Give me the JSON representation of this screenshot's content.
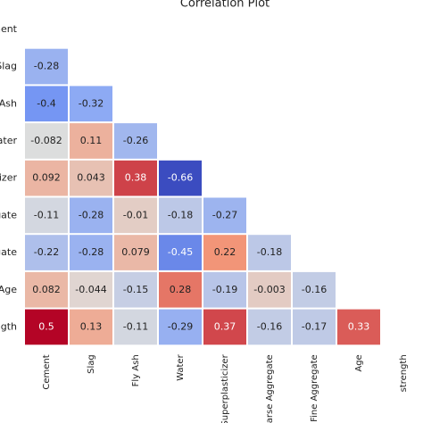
{
  "chart_data": {
    "type": "heatmap",
    "title": "Correlation Plot",
    "categories": [
      "Cement",
      "Slag",
      "Fly Ash",
      "Water",
      "Superplasticizer",
      "Coarse Aggregate",
      "Fine Aggregate",
      "Age",
      "strength"
    ],
    "colormap": "coolwarm",
    "values": [
      [
        null,
        null,
        null,
        null,
        null,
        null,
        null,
        null,
        null
      ],
      [
        -0.28,
        null,
        null,
        null,
        null,
        null,
        null,
        null,
        null
      ],
      [
        -0.4,
        -0.32,
        null,
        null,
        null,
        null,
        null,
        null,
        null
      ],
      [
        -0.082,
        0.11,
        -0.26,
        null,
        null,
        null,
        null,
        null,
        null
      ],
      [
        0.092,
        0.043,
        0.38,
        -0.66,
        null,
        null,
        null,
        null,
        null
      ],
      [
        -0.11,
        -0.28,
        -0.01,
        -0.18,
        -0.27,
        null,
        null,
        null,
        null
      ],
      [
        -0.22,
        -0.28,
        0.079,
        -0.45,
        0.22,
        -0.18,
        null,
        null,
        null
      ],
      [
        0.082,
        -0.044,
        -0.15,
        0.28,
        -0.19,
        -0.003,
        -0.16,
        null,
        null
      ],
      [
        0.5,
        0.13,
        -0.11,
        -0.29,
        0.37,
        -0.16,
        -0.17,
        0.33,
        null
      ]
    ]
  }
}
